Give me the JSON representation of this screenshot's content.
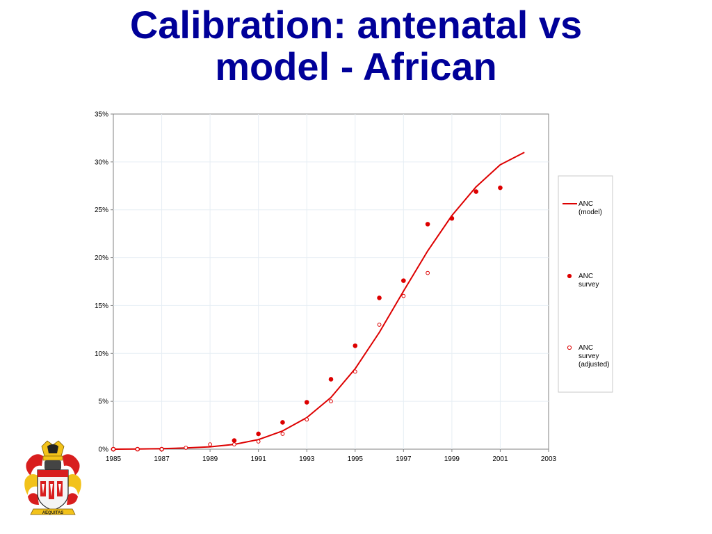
{
  "slide": {
    "title_line1": "Calibration: antenatal vs",
    "title_line2": "model - African"
  },
  "logo": {
    "icon": "university-crest-icon",
    "motto": "AEQUITAS"
  },
  "colors": {
    "title": "#000099",
    "series": "#dd0000",
    "grid": "#e6eef4",
    "axis": "#808080"
  },
  "chart_data": {
    "type": "line",
    "title": "",
    "xlabel": "",
    "ylabel": "",
    "xlim": [
      1985,
      2003
    ],
    "ylim": [
      0,
      35
    ],
    "x_ticks": [
      "1985",
      "1987",
      "1989",
      "1991",
      "1993",
      "1995",
      "1997",
      "1999",
      "2001",
      "2003"
    ],
    "y_ticks": [
      "0%",
      "5%",
      "10%",
      "15%",
      "20%",
      "25%",
      "30%",
      "35%"
    ],
    "grid": true,
    "legend_position": "right",
    "series": [
      {
        "name": "ANC (model)",
        "legend_lines": [
          "ANC",
          "(model)"
        ],
        "style": "line",
        "x": [
          1985,
          1986,
          1987,
          1988,
          1989,
          1990,
          1991,
          1992,
          1993,
          1994,
          1995,
          1996,
          1997,
          1998,
          1999,
          2000,
          2001,
          2002
        ],
        "y": [
          0,
          0.02,
          0.05,
          0.12,
          0.25,
          0.5,
          1.0,
          1.9,
          3.3,
          5.4,
          8.4,
          12.2,
          16.5,
          20.7,
          24.4,
          27.4,
          29.7,
          31.0
        ]
      },
      {
        "name": "ANC survey",
        "legend_lines": [
          "ANC",
          "survey"
        ],
        "style": "filled-dot",
        "x": [
          1985,
          1986,
          1987,
          1990,
          1991,
          1992,
          1993,
          1994,
          1995,
          1996,
          1997,
          1998,
          1999,
          2000,
          2001
        ],
        "y": [
          0,
          0,
          0,
          0.9,
          1.6,
          2.8,
          4.9,
          7.3,
          10.8,
          15.8,
          17.6,
          23.5,
          24.1,
          26.9,
          27.3
        ]
      },
      {
        "name": "ANC survey (adjusted)",
        "legend_lines": [
          "ANC",
          "survey",
          "(adjusted)"
        ],
        "style": "open-dot",
        "x": [
          1985,
          1986,
          1987,
          1988,
          1989,
          1990,
          1991,
          1992,
          1993,
          1994,
          1995,
          1996,
          1997,
          1998
        ],
        "y": [
          0,
          0,
          0,
          0.15,
          0.5,
          0.5,
          0.8,
          1.6,
          3.1,
          5.0,
          8.1,
          13.0,
          16.0,
          18.4
        ]
      }
    ]
  }
}
